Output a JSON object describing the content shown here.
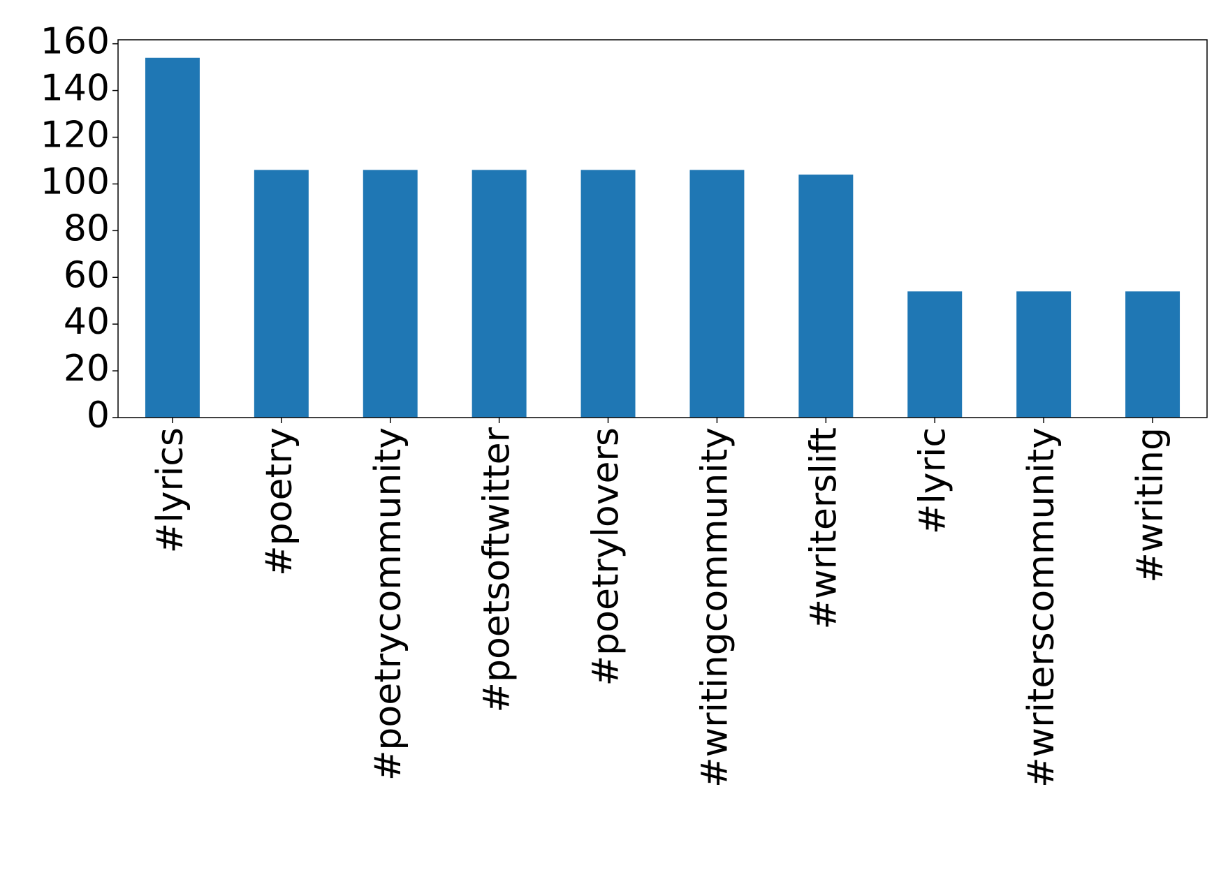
{
  "chart_data": {
    "type": "bar",
    "categories": [
      "#lyrics",
      "#poetry",
      "#poetrycommunity",
      "#poetsoftwitter",
      "#poetrylovers",
      "#writingcommunity",
      "#writerslift",
      "#lyric",
      "#writerscommunity",
      "#writing"
    ],
    "values": [
      154,
      106,
      106,
      106,
      106,
      106,
      104,
      54,
      54,
      54
    ],
    "color": "#1f77b4",
    "ylim": [
      0,
      161.7
    ],
    "yticks": [
      0,
      20,
      40,
      60,
      80,
      100,
      120,
      140,
      160
    ],
    "grid": false
  }
}
